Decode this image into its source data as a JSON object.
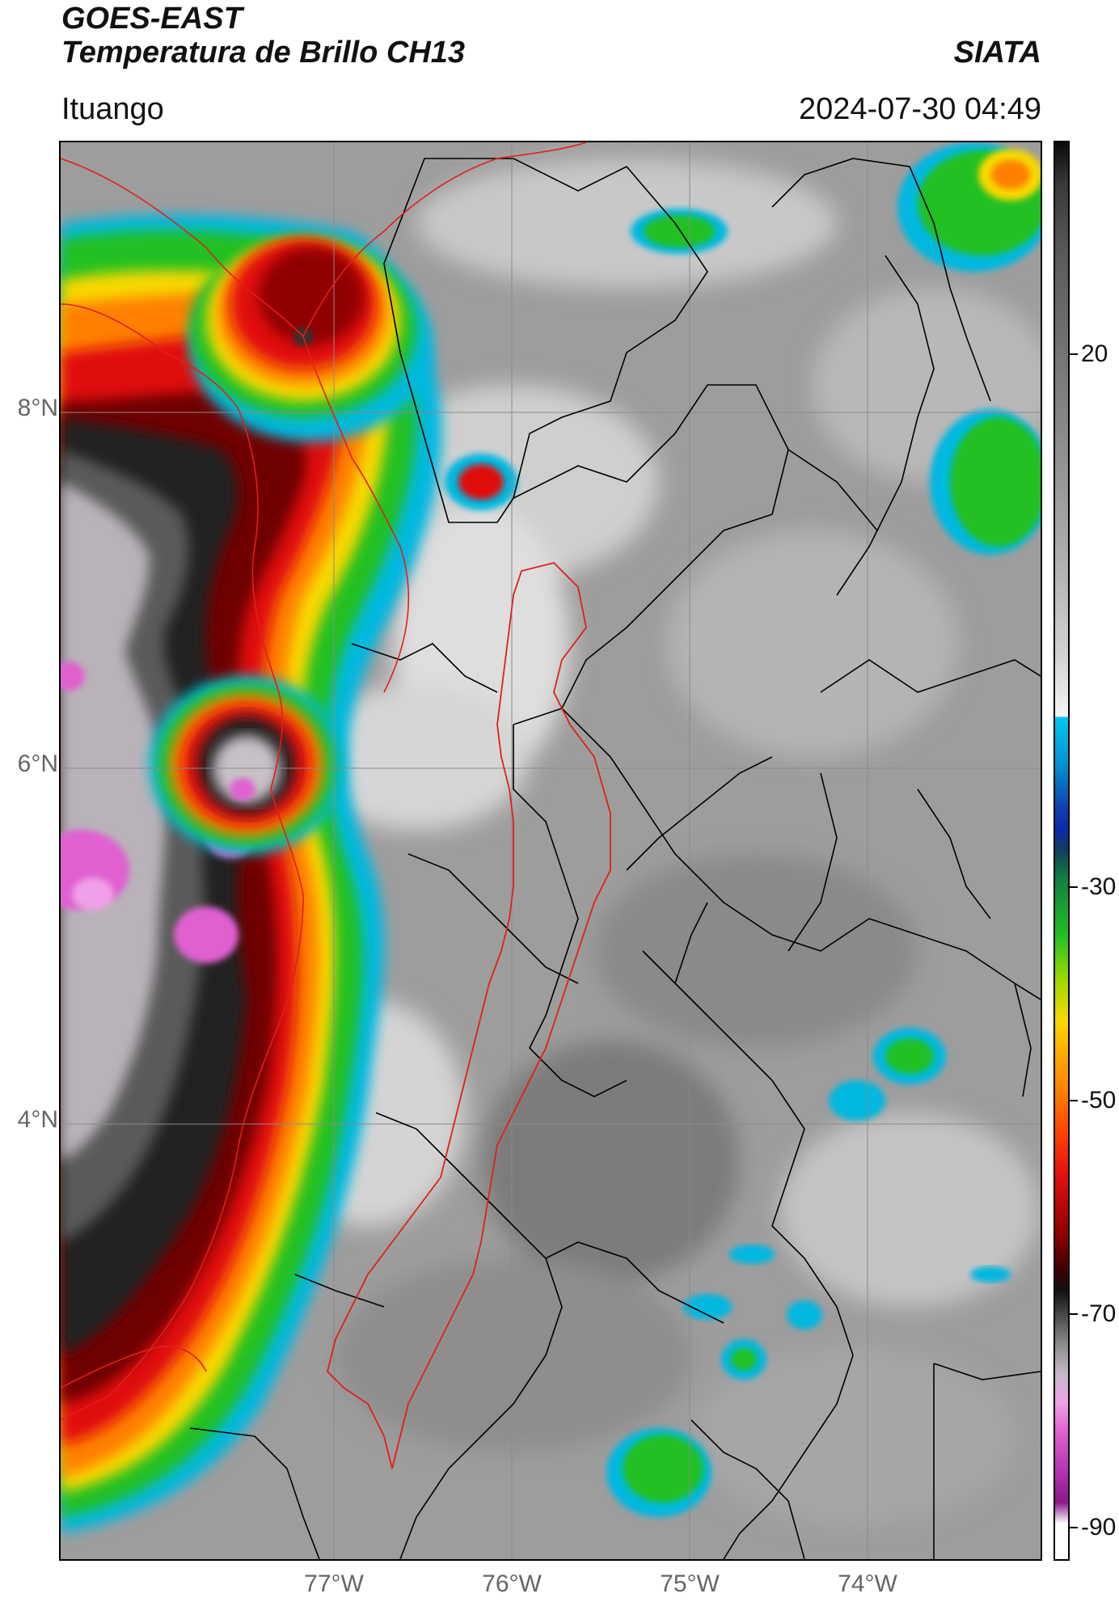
{
  "header": {
    "title_line1": "GOES-EAST",
    "title_line2": "Temperatura de Brillo CH13",
    "organization": "SIATA",
    "region": "Ituango",
    "datetime": "2024-07-30 04:49"
  },
  "map": {
    "latitude_labels": [
      "8°N",
      "6°N",
      "4°N"
    ],
    "longitude_labels": [
      "77°W",
      "76°W",
      "75°W",
      "74°W"
    ],
    "border_color": "#000000",
    "basin_outline_color": "#e0201a"
  },
  "colorbar": {
    "tick_labels": [
      "20",
      "-30",
      "-50",
      "-70",
      "-90"
    ],
    "colors": {
      "warm_gray_low": "#ffffff",
      "cyan": "#00b8e0",
      "blue": "#0a2aa8",
      "green": "#22c022",
      "yellow": "#f8d800",
      "orange": "#ff8000",
      "red": "#e01010",
      "dark_red": "#700000",
      "black": "#101010",
      "magenta": "#e060d0",
      "purple": "#8a1a8a"
    }
  }
}
